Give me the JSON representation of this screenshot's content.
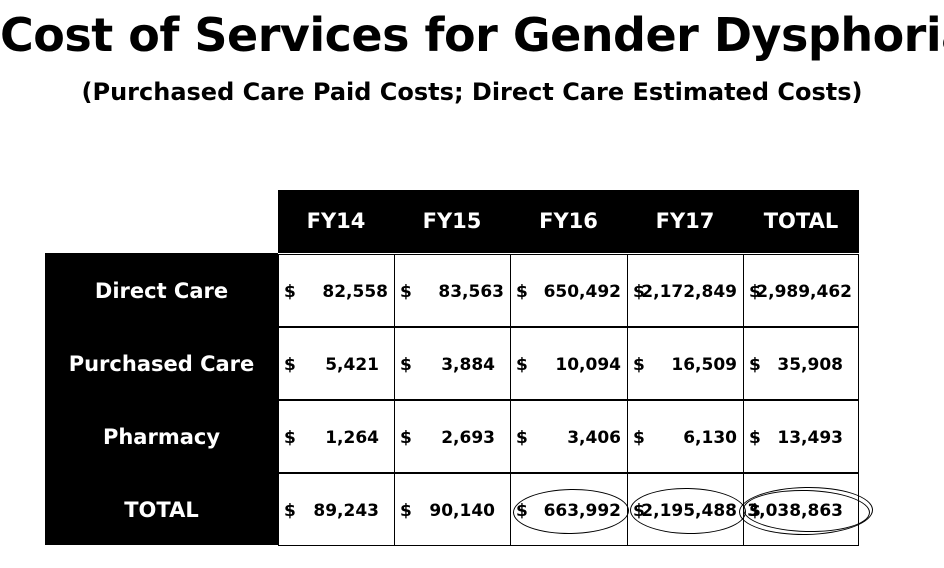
{
  "title": "Cost of Services for Gender Dysphoria",
  "subtitle": "(Purchased Care Paid Costs; Direct Care Estimated Costs)",
  "table": {
    "headers": [
      "FY14",
      "FY15",
      "FY16",
      "FY17",
      "TOTAL"
    ],
    "rows": [
      {
        "label": "Direct Care",
        "cells": [
          {
            "cur": "$",
            "val": "82,558"
          },
          {
            "cur": "$",
            "val": "83,563"
          },
          {
            "cur": "$",
            "val": "650,492"
          },
          {
            "cur": "$",
            "val": "2,172,849"
          },
          {
            "cur": "$",
            "val": "2,989,462"
          }
        ]
      },
      {
        "label": "Purchased Care",
        "cells": [
          {
            "cur": "$",
            "val": "5,421"
          },
          {
            "cur": "$",
            "val": "3,884"
          },
          {
            "cur": "$",
            "val": "10,094"
          },
          {
            "cur": "$",
            "val": "16,509"
          },
          {
            "cur": "$",
            "val": "35,908"
          }
        ]
      },
      {
        "label": "Pharmacy",
        "cells": [
          {
            "cur": "$",
            "val": "1,264"
          },
          {
            "cur": "$",
            "val": "2,693"
          },
          {
            "cur": "$",
            "val": "3,406"
          },
          {
            "cur": "$",
            "val": "6,130"
          },
          {
            "cur": "$",
            "val": "13,493"
          }
        ]
      },
      {
        "label": "TOTAL",
        "cells": [
          {
            "cur": "$",
            "val": "89,243"
          },
          {
            "cur": "$",
            "val": "90,140"
          },
          {
            "cur": "$",
            "val": "663,992"
          },
          {
            "cur": "$",
            "val": "2,195,488"
          },
          {
            "cur": "$",
            "val": "3,038,863"
          }
        ]
      }
    ]
  },
  "colors": {
    "header_bg": "#000000",
    "header_text": "#ffffff",
    "cell_bg": "#ffffff",
    "text": "#000000"
  }
}
